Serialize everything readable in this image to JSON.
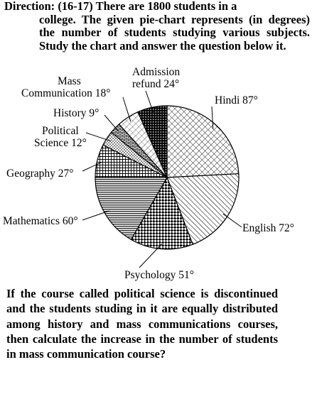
{
  "direction": {
    "label": "Direction:",
    "line1_rest": " (16-17) There are 1800 students in a",
    "line_rest": "college. The given pie-chart represents (in degrees) the number of students studying various subjects. Study the chart and answer the question below it."
  },
  "chart_data": {
    "type": "pie",
    "unit": "degrees",
    "categories": [
      "Hindi",
      "English",
      "Psychology",
      "Mathematics",
      "Geography",
      "Political Science",
      "History",
      "Mass Communication",
      "Admission refund"
    ],
    "values": [
      87,
      72,
      51,
      60,
      27,
      12,
      9,
      18,
      24
    ],
    "labels": [
      {
        "lines": [
          "Hindi 87°"
        ]
      },
      {
        "lines": [
          "English 72°"
        ]
      },
      {
        "lines": [
          "Psychology 51°"
        ]
      },
      {
        "lines": [
          "Mathematics 60°"
        ]
      },
      {
        "lines": [
          "Geography 27°"
        ]
      },
      {
        "lines": [
          "Political",
          "Science 12°"
        ]
      },
      {
        "lines": [
          "History 9°"
        ]
      },
      {
        "lines": [
          "Mass",
          "Communication 18°"
        ]
      },
      {
        "lines": [
          "Admission",
          "refund 24°"
        ]
      }
    ],
    "patterns": [
      "crosshatch",
      "diagonal",
      "checker",
      "horizontal-lines",
      "grid",
      "dots",
      "brick",
      "light-diagonal",
      "dark-checker"
    ]
  },
  "question": {
    "text": "If the course called political science is discontinued and the students studing in it are equally distributed among history and mass communications courses, then calculate the increase in the number of students in mass communication course?"
  }
}
